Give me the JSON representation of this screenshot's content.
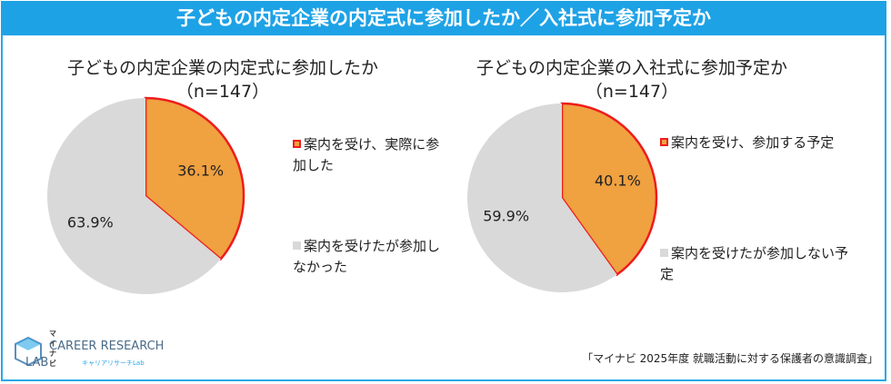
{
  "header": {
    "title": "子どもの内定企業の内定式に参加したか／入社式に参加予定か"
  },
  "chart_data": [
    {
      "type": "pie",
      "title": "子どもの内定企業の内定式に参加したか",
      "subtitle": "（n=147）",
      "categories": [
        "案内を受け、実際に参加した",
        "案内を受けたが参加しなかった"
      ],
      "values": [
        36.1,
        63.9
      ],
      "value_labels": [
        "36.1%",
        "63.9%"
      ],
      "colors": [
        "#f0a140",
        "#d9d9d9"
      ],
      "highlight_border": "#ee1c1c"
    },
    {
      "type": "pie",
      "title": "子どもの内定企業の入社式に参加予定か",
      "subtitle": "（n=147）",
      "categories": [
        "案内を受け、参加する予定",
        "案内を受けたが参加しない予定"
      ],
      "values": [
        40.1,
        59.9
      ],
      "value_labels": [
        "40.1%",
        "59.9%"
      ],
      "colors": [
        "#f0a140",
        "#d9d9d9"
      ],
      "highlight_border": "#ee1c1c"
    }
  ],
  "logo": {
    "brand": "マイナビ",
    "line1": "CAREER RESEARCH",
    "line2": "LAB",
    "sub": "キャリアリサーチLab"
  },
  "source": "「マイナビ 2025年度 就職活動に対する保護者の意識調査」"
}
